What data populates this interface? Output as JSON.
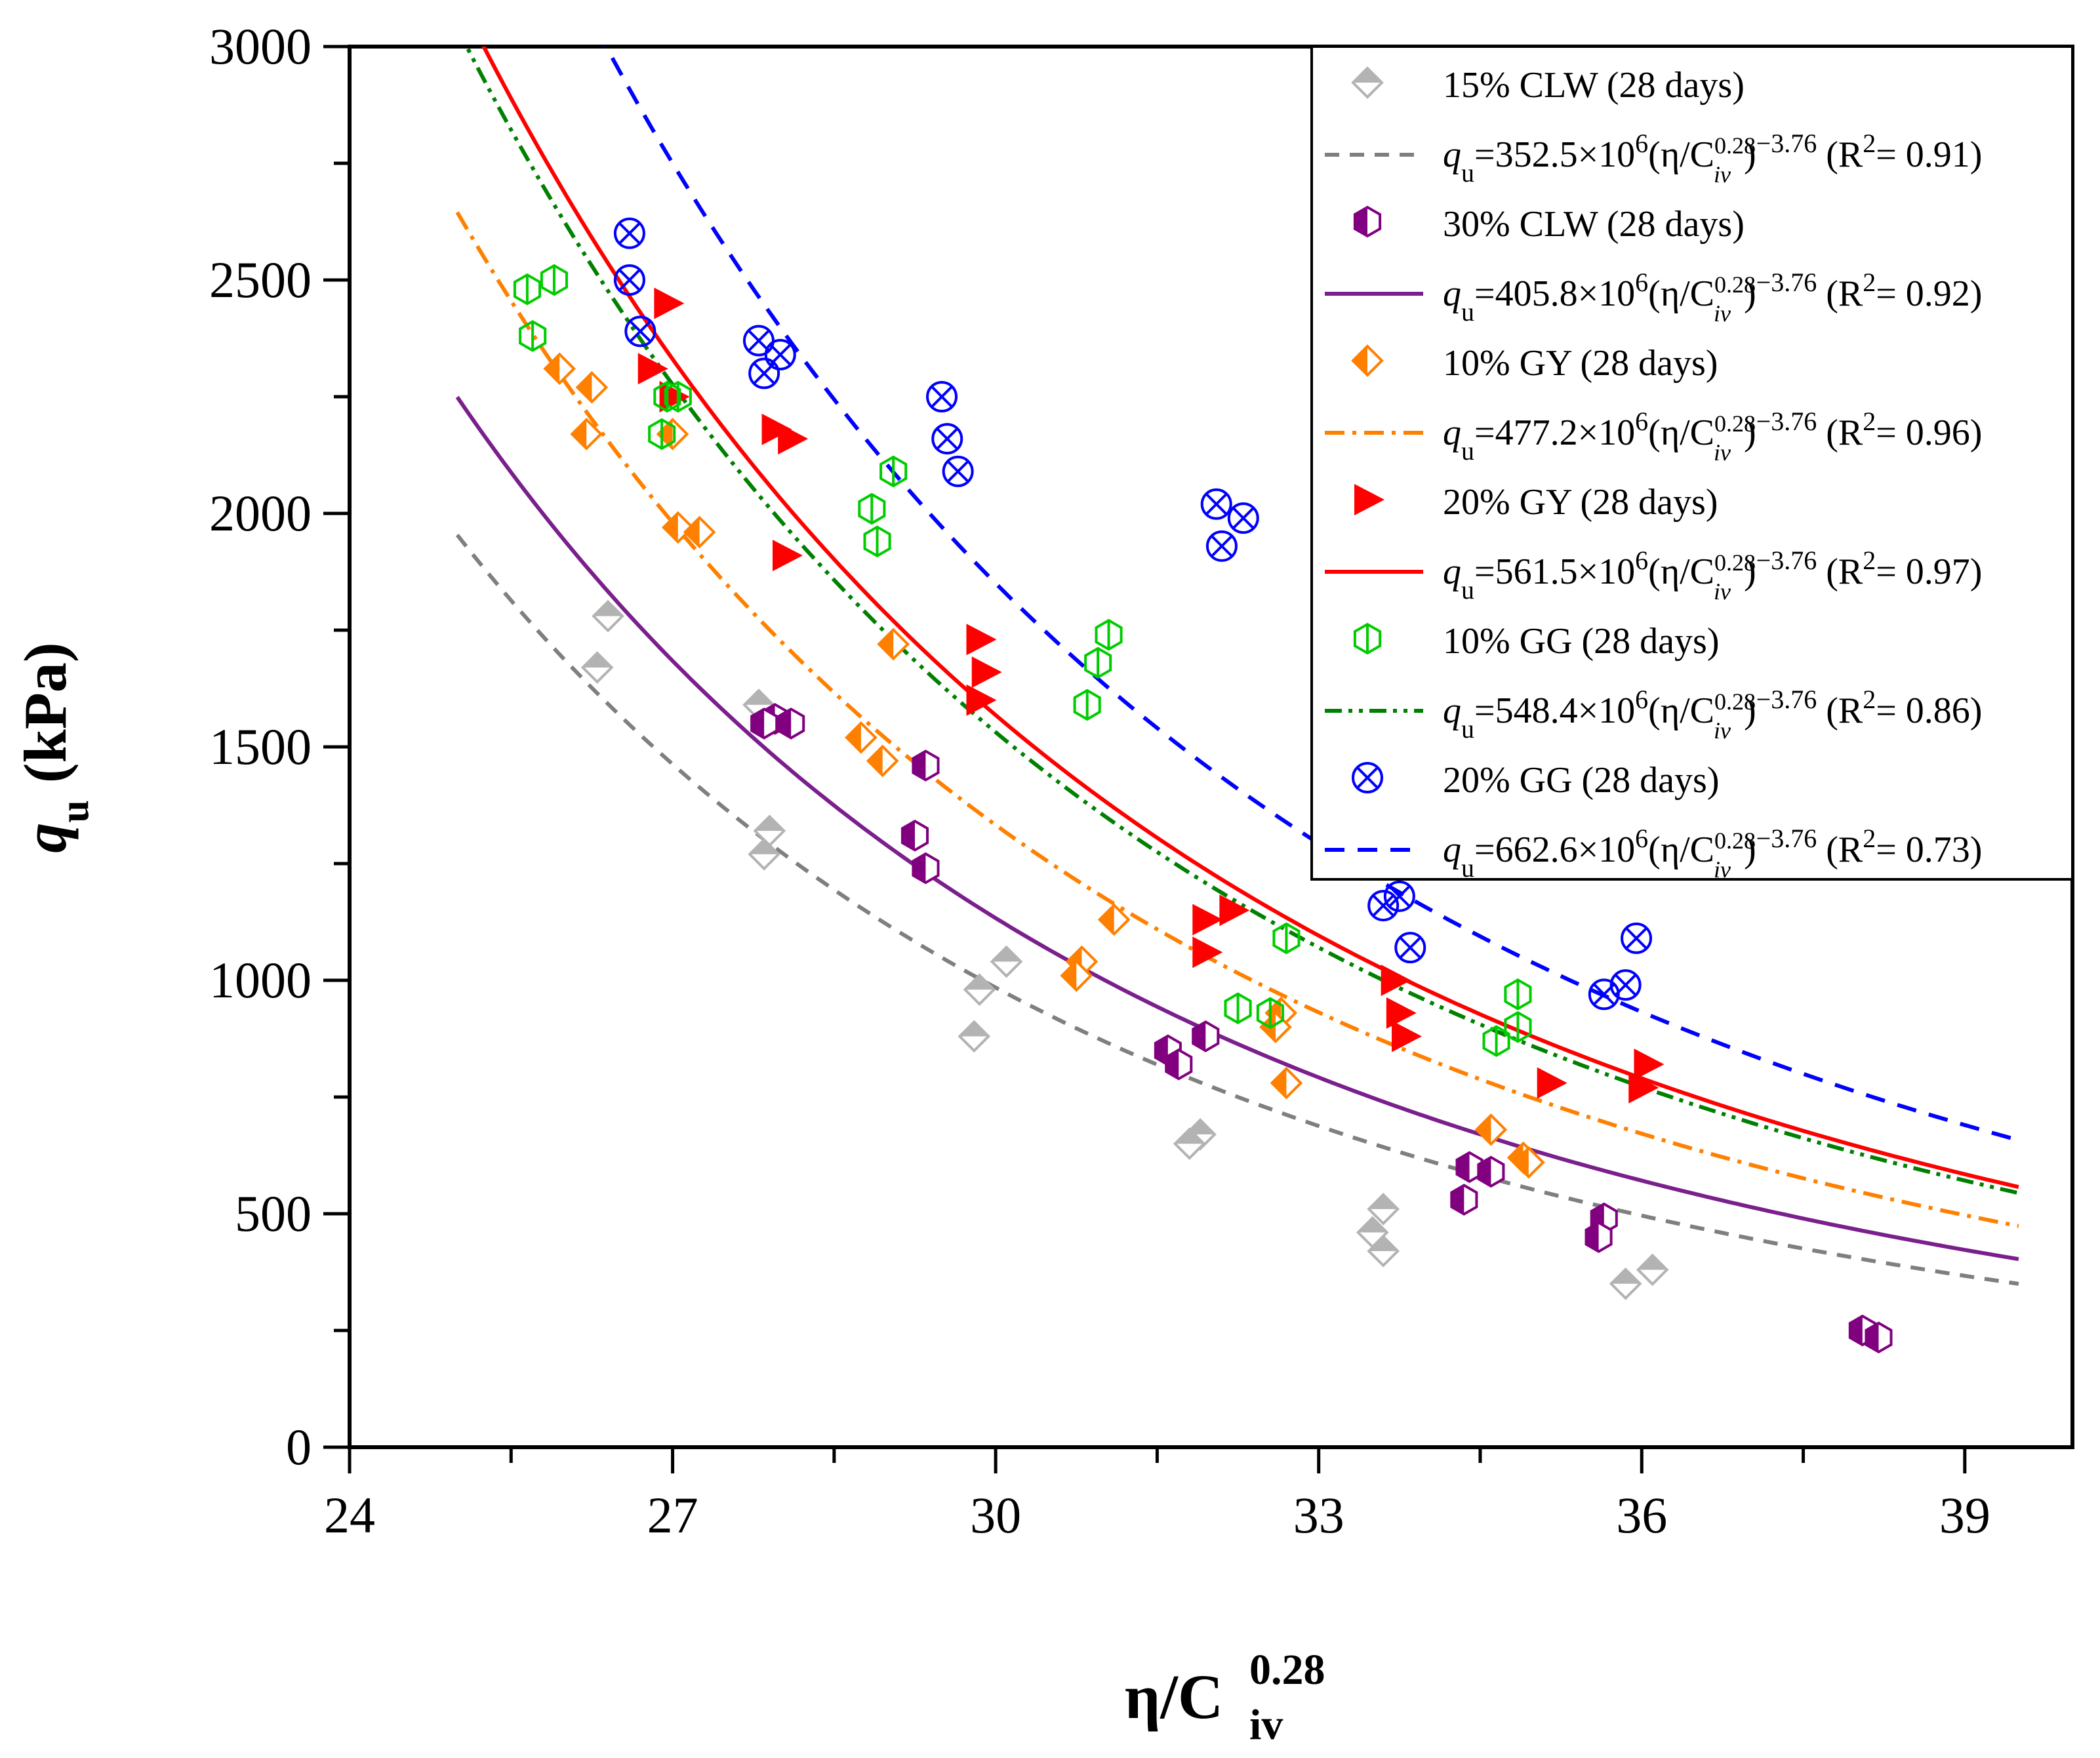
{
  "chart_data": {
    "type": "scatter",
    "xlabel": {
      "main": "η/C",
      "sub": "iv",
      "sup": "0.28"
    },
    "ylabel": {
      "main": "q",
      "sub": "u",
      "unit": "(kPa)"
    },
    "xlim": [
      24,
      40
    ],
    "ylim": [
      0,
      3000
    ],
    "xticks": [
      24,
      27,
      30,
      33,
      36,
      39
    ],
    "yticks": [
      0,
      500,
      1000,
      1500,
      2000,
      2500,
      3000
    ],
    "series": [
      {
        "name": "15% CLW (28 days)",
        "marker": "diamond-gray",
        "color": "#b3b3b3",
        "points": [
          [
            26.4,
            1780
          ],
          [
            26.3,
            1670
          ],
          [
            27.8,
            1590
          ],
          [
            27.9,
            1320
          ],
          [
            27.85,
            1270
          ],
          [
            29.85,
            980
          ],
          [
            29.8,
            880
          ],
          [
            30.1,
            1040
          ],
          [
            31.9,
            670
          ],
          [
            31.8,
            650
          ],
          [
            33.6,
            510
          ],
          [
            33.5,
            460
          ],
          [
            33.6,
            420
          ],
          [
            35.85,
            350
          ],
          [
            36.1,
            380
          ]
        ],
        "fit": {
          "coef": 352.5,
          "exp": -3.76,
          "r2": "0.91",
          "range": [
            25,
            39.5
          ],
          "color": "#7f7f7f",
          "dash": "22 16",
          "label": {
            "lhs": "q",
            "lhsSub": "u",
            "coefText": "=352.5×10",
            "sup6": "6",
            "open": "(η/C",
            "civSup": "0.28",
            "civSub": "iv",
            "close": ")",
            "expText": "−3.76",
            "r2Text": " (R",
            "r2Sup": "2",
            "r2Tail": "= 0.91)"
          }
        }
      },
      {
        "name": "30% CLW (28 days)",
        "marker": "hex-half",
        "color": "#800080",
        "points": [
          [
            27.95,
            1560
          ],
          [
            28.1,
            1550
          ],
          [
            27.85,
            1550
          ],
          [
            29.35,
            1460
          ],
          [
            29.25,
            1310
          ],
          [
            29.35,
            1240
          ],
          [
            31.6,
            850
          ],
          [
            31.7,
            820
          ],
          [
            31.95,
            880
          ],
          [
            34.4,
            600
          ],
          [
            34.6,
            590
          ],
          [
            34.35,
            530
          ],
          [
            35.65,
            490
          ],
          [
            35.6,
            450
          ],
          [
            38.05,
            250
          ],
          [
            38.2,
            235
          ]
        ],
        "fit": {
          "coef": 405.8,
          "exp": -3.76,
          "r2": "0.92",
          "range": [
            25,
            39.5
          ],
          "color": "#7a1f8c",
          "dash": "",
          "label": {
            "lhs": "q",
            "lhsSub": "u",
            "coefText": "=405.8×10",
            "sup6": "6",
            "open": "(η/C",
            "civSup": "0.28",
            "civSub": "iv",
            "close": ")",
            "expText": "−3.76",
            "r2Text": " (R",
            "r2Sup": "2",
            "r2Tail": "= 0.92)"
          }
        }
      },
      {
        "name": "10% GY (28 days)",
        "marker": "diamond-half",
        "color": "#ff8000",
        "points": [
          [
            25.95,
            2310
          ],
          [
            26.25,
            2270
          ],
          [
            26.2,
            2170
          ],
          [
            27.0,
            2170
          ],
          [
            27.05,
            1970
          ],
          [
            27.25,
            1960
          ],
          [
            29.05,
            1720
          ],
          [
            28.75,
            1520
          ],
          [
            28.95,
            1470
          ],
          [
            30.8,
            1040
          ],
          [
            30.75,
            1010
          ],
          [
            31.1,
            1130
          ],
          [
            32.65,
            930
          ],
          [
            32.6,
            900
          ],
          [
            32.7,
            780
          ],
          [
            34.6,
            680
          ],
          [
            34.9,
            620
          ],
          [
            34.95,
            610
          ]
        ],
        "fit": {
          "coef": 477.2,
          "exp": -3.76,
          "r2": "0.96",
          "range": [
            25,
            39.5
          ],
          "color": "#ff8000",
          "dash": "30 12 6 12",
          "label": {
            "lhs": "q",
            "lhsSub": "u",
            "coefText": "=477.2×10",
            "sup6": "6",
            "open": "(η/C",
            "civSup": "0.28",
            "civSub": "iv",
            "close": ")",
            "expText": "−3.76",
            "r2Text": " (R",
            "r2Sup": "2",
            "r2Tail": "= 0.96)"
          }
        }
      },
      {
        "name": "20% GY (28 days)",
        "marker": "triangle-right",
        "color": "#ff0000",
        "points": [
          [
            26.95,
            2450
          ],
          [
            26.8,
            2310
          ],
          [
            27.0,
            2250
          ],
          [
            27.95,
            2180
          ],
          [
            28.1,
            2160
          ],
          [
            28.05,
            1910
          ],
          [
            29.85,
            1730
          ],
          [
            29.9,
            1660
          ],
          [
            29.85,
            1600
          ],
          [
            31.95,
            1130
          ],
          [
            32.2,
            1150
          ],
          [
            31.95,
            1060
          ],
          [
            33.7,
            1000
          ],
          [
            33.75,
            930
          ],
          [
            33.8,
            880
          ],
          [
            35.15,
            780
          ],
          [
            36.05,
            820
          ],
          [
            36.0,
            770
          ]
        ],
        "fit": {
          "coef": 561.5,
          "exp": -3.76,
          "r2": "0.97",
          "range": [
            25,
            39.5
          ],
          "color": "#ff0000",
          "dash": "",
          "label": {
            "lhs": "q",
            "lhsSub": "u",
            "coefText": "=561.5×10",
            "sup6": "6",
            "open": "(η/C",
            "civSup": "0.28",
            "civSub": "iv",
            "close": ")",
            "expText": "−3.76",
            "r2Text": " (R",
            "r2Sup": "2",
            "r2Tail": "= 0.97)"
          }
        }
      },
      {
        "name": "10% GG (28 days)",
        "marker": "hex-open",
        "color": "#00cc00",
        "points": [
          [
            25.65,
            2480
          ],
          [
            25.9,
            2500
          ],
          [
            25.7,
            2380
          ],
          [
            26.95,
            2250
          ],
          [
            27.05,
            2250
          ],
          [
            26.9,
            2170
          ],
          [
            29.05,
            2090
          ],
          [
            28.85,
            2010
          ],
          [
            28.9,
            1940
          ],
          [
            31.05,
            1740
          ],
          [
            30.95,
            1680
          ],
          [
            30.85,
            1590
          ],
          [
            32.7,
            1090
          ],
          [
            32.25,
            940
          ],
          [
            32.55,
            930
          ],
          [
            34.85,
            970
          ],
          [
            34.85,
            900
          ],
          [
            34.65,
            870
          ]
        ],
        "fit": {
          "coef": 548.4,
          "exp": -3.76,
          "r2": "0.86",
          "range": [
            25,
            39.5
          ],
          "color": "#008000",
          "dash": "26 10 6 10 6 10",
          "label": {
            "lhs": "q",
            "lhsSub": "u",
            "coefText": "=548.4×10",
            "sup6": "6",
            "open": "(η/C",
            "civSup": "0.28",
            "civSub": "iv",
            "close": ")",
            "expText": "−3.76",
            "r2Text": " (R",
            "r2Sup": "2",
            "r2Tail": "= 0.86)"
          }
        }
      },
      {
        "name": "20% GG (28 days)",
        "marker": "circle-x",
        "color": "#0000ff",
        "points": [
          [
            26.6,
            2600
          ],
          [
            26.6,
            2500
          ],
          [
            26.7,
            2390
          ],
          [
            27.8,
            2370
          ],
          [
            28.0,
            2340
          ],
          [
            27.85,
            2300
          ],
          [
            29.5,
            2250
          ],
          [
            29.55,
            2160
          ],
          [
            29.65,
            2090
          ],
          [
            32.05,
            2020
          ],
          [
            32.3,
            1990
          ],
          [
            32.1,
            1930
          ],
          [
            33.6,
            1160
          ],
          [
            33.75,
            1180
          ],
          [
            33.85,
            1070
          ],
          [
            35.65,
            970
          ],
          [
            35.85,
            990
          ],
          [
            35.95,
            1090
          ]
        ],
        "fit": {
          "coef": 662.6,
          "exp": -3.76,
          "r2": "0.73",
          "range": [
            25,
            39.5
          ],
          "color": "#0000ff",
          "dash": "30 20",
          "label": {
            "lhs": "q",
            "lhsSub": "u",
            "coefText": "=662.6×10",
            "sup6": "6",
            "open": "(η/C",
            "civSup": "0.28",
            "civSub": "iv",
            "close": ")",
            "expText": "−3.76",
            "r2Text": " (R",
            "r2Sup": "2",
            "r2Tail": "= 0.73)"
          }
        }
      }
    ]
  }
}
